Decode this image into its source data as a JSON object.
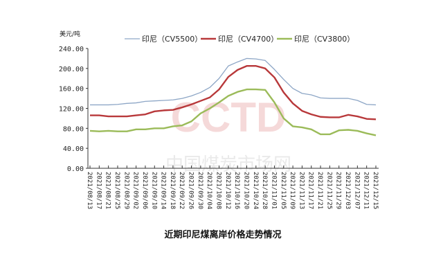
{
  "chart_data": {
    "type": "line",
    "title": "近期印尼煤离岸价格走势情况",
    "ylabel": "美元/吨",
    "xlabel": "",
    "ylim": [
      0,
      240
    ],
    "yticks": [
      "0.00",
      "40.00",
      "80.00",
      "120.00",
      "160.00",
      "200.00",
      "240.00"
    ],
    "legend_position": "top",
    "grid": false,
    "watermark": "CCTD 中国煤炭市场网",
    "categories": [
      "2021/08/13",
      "2021/08/17",
      "2021/08/21",
      "2021/08/25",
      "2021/08/29",
      "2021/09/02",
      "2021/09/06",
      "2021/09/10",
      "2021/09/14",
      "2021/09/18",
      "2021/09/22",
      "2021/09/26",
      "2021/09/30",
      "2021/10/04",
      "2021/10/08",
      "2021/10/12",
      "2021/10/16",
      "2021/10/20",
      "2021/10/24",
      "2021/10/28",
      "2021/11/01",
      "2021/11/05",
      "2021/11/09",
      "2021/11/13",
      "2021/11/17",
      "2021/11/21",
      "2021/11/25",
      "2021/11/29",
      "2021/12/03",
      "2021/12/07",
      "2021/12/11",
      "2021/12/15"
    ],
    "series": [
      {
        "name": "印尼（CV5500）",
        "color": "#8DA6C6",
        "values": [
          127,
          127,
          127,
          128,
          130,
          131,
          134,
          135,
          136,
          137,
          140,
          145,
          152,
          162,
          180,
          205,
          213,
          220,
          219,
          216,
          198,
          178,
          160,
          150,
          147,
          141,
          140,
          140,
          140,
          136,
          128,
          127
        ]
      },
      {
        "name": "印尼（CV4700）",
        "color": "#B8383A",
        "values": [
          106,
          106,
          104,
          104,
          104,
          106,
          108,
          114,
          116,
          117,
          122,
          128,
          135,
          142,
          158,
          183,
          197,
          205,
          205,
          200,
          182,
          152,
          130,
          115,
          108,
          103,
          102,
          102,
          107,
          104,
          99,
          98
        ]
      },
      {
        "name": "印尼（CV3800）",
        "color": "#9BBB59",
        "values": [
          75,
          74,
          75,
          74,
          74,
          78,
          78,
          80,
          80,
          84,
          86,
          94,
          110,
          120,
          132,
          145,
          153,
          158,
          158,
          157,
          132,
          100,
          84,
          82,
          78,
          68,
          68,
          76,
          77,
          75,
          70,
          66
        ]
      }
    ]
  }
}
